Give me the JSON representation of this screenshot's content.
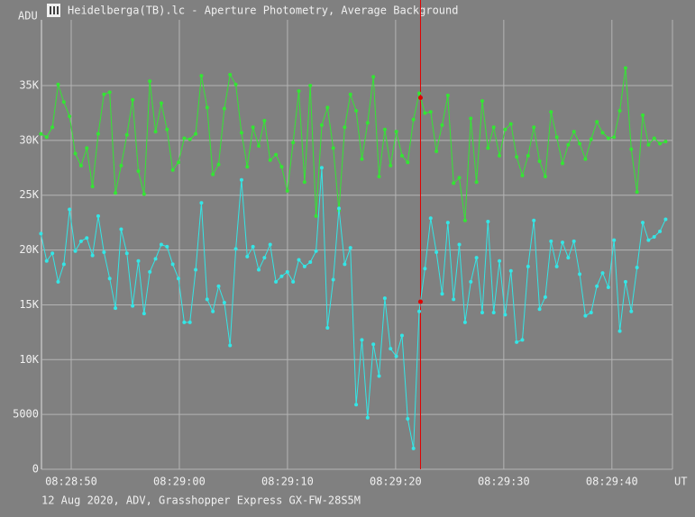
{
  "window_title": "Heidelberga(TB).lc - Aperture Photometry, Average Background",
  "footer": "12 Aug 2020, ADV, Grasshopper Express GX-FW-28S5M",
  "chart_data": {
    "type": "line",
    "ylabel": "ADU",
    "xlabel": "UT",
    "xlim": [
      30527.25,
      30585.6
    ],
    "ylim": [
      0,
      41000
    ],
    "grid": true,
    "cursor_x": 30562.3,
    "cursor_color": "#e00000",
    "xticks": [
      {
        "value": 30530,
        "label": "08:28:50"
      },
      {
        "value": 30540,
        "label": "08:29:00"
      },
      {
        "value": 30550,
        "label": "08:29:10"
      },
      {
        "value": 30560,
        "label": "08:29:20"
      },
      {
        "value": 30570,
        "label": "08:29:30"
      },
      {
        "value": 30580,
        "label": "08:29:40"
      }
    ],
    "yticks": [
      0,
      5000,
      {
        "value": 10000,
        "label": "10K"
      },
      {
        "value": 15000,
        "label": "15K"
      },
      {
        "value": 20000,
        "label": "20K"
      },
      {
        "value": 25000,
        "label": "25K"
      },
      {
        "value": 30000,
        "label": "30K"
      },
      {
        "value": 35000,
        "label": "35K"
      }
    ],
    "x": [
      30527.2,
      30527.73,
      30528.26,
      30528.79,
      30529.32,
      30529.85,
      30530.38,
      30530.91,
      30531.44,
      30531.97,
      30532.5,
      30533.03,
      30533.56,
      30534.09,
      30534.62,
      30535.15,
      30535.68,
      30536.21,
      30536.74,
      30537.27,
      30537.8,
      30538.33,
      30538.86,
      30539.39,
      30539.92,
      30540.45,
      30540.98,
      30541.51,
      30542.04,
      30542.57,
      30543.1,
      30543.63,
      30544.16,
      30544.69,
      30545.22,
      30545.75,
      30546.28,
      30546.81,
      30547.34,
      30547.87,
      30548.4,
      30548.93,
      30549.46,
      30549.99,
      30550.52,
      30551.05,
      30551.58,
      30552.11,
      30552.64,
      30553.17,
      30553.7,
      30554.23,
      30554.76,
      30555.29,
      30555.82,
      30556.35,
      30556.88,
      30557.41,
      30557.94,
      30558.47,
      30559.0,
      30559.53,
      30560.06,
      30560.59,
      30561.12,
      30561.65,
      30562.18,
      30562.71,
      30563.24,
      30563.77,
      30564.3,
      30564.83,
      30565.36,
      30565.89,
      30566.42,
      30566.95,
      30567.48,
      30568.01,
      30568.54,
      30569.07,
      30569.6,
      30570.13,
      30570.66,
      30571.19,
      30571.72,
      30572.25,
      30572.78,
      30573.31,
      30573.84,
      30574.37,
      30574.9,
      30575.43,
      30575.96,
      30576.49,
      30577.02,
      30577.55,
      30578.08,
      30578.61,
      30579.14,
      30579.67,
      30580.2,
      30580.73,
      30581.26,
      30581.79,
      30582.32,
      30582.85,
      30583.38,
      30583.91,
      30584.44,
      30584.97
    ],
    "series": [
      {
        "color": "#33e633",
        "values": [
          30600,
          30300,
          31200,
          35100,
          33500,
          32200,
          28800,
          27700,
          29300,
          25800,
          30600,
          34200,
          34400,
          25200,
          27700,
          30500,
          33700,
          27200,
          25100,
          35400,
          30800,
          33400,
          31000,
          27300,
          28000,
          30200,
          30100,
          30600,
          35900,
          33000,
          26900,
          27800,
          32900,
          36000,
          35100,
          30700,
          27600,
          31200,
          29500,
          31800,
          28200,
          28700,
          27600,
          25400,
          29800,
          34500,
          26200,
          35000,
          23100,
          31400,
          33000,
          29300,
          23600,
          31200,
          34200,
          32700,
          28300,
          31600,
          35800,
          26700,
          31000,
          27700,
          30800,
          28600,
          28000,
          31900,
          34300,
          32500,
          32600,
          29000,
          31400,
          34100,
          26100,
          26600,
          22700,
          32000,
          26200,
          33600,
          29300,
          31200,
          28600,
          31000,
          31500,
          28500,
          26800,
          28600,
          31200,
          28100,
          26700,
          32600,
          30300,
          27900,
          29600,
          30800,
          29700,
          28300,
          30100,
          31700,
          30700,
          30200,
          30300,
          32700,
          36600,
          29200,
          25300,
          32300,
          29600,
          30200,
          29700,
          29900
        ]
      },
      {
        "color": "#33e6e6",
        "values": [
          21500,
          19000,
          19700,
          17100,
          18700,
          23700,
          19900,
          20800,
          21100,
          19500,
          23100,
          19800,
          17400,
          14700,
          21900,
          19700,
          14900,
          19000,
          14200,
          18000,
          19200,
          20500,
          20300,
          18700,
          17400,
          13400,
          13400,
          18200,
          24300,
          15500,
          14400,
          16700,
          15200,
          11300,
          20100,
          26400,
          19400,
          20300,
          18200,
          19300,
          20500,
          17100,
          17600,
          18000,
          17100,
          19100,
          18500,
          18900,
          19900,
          27500,
          12900,
          17300,
          23800,
          18700,
          20200,
          5900,
          11800,
          4700,
          11400,
          8500,
          15600,
          11000,
          10300,
          12200,
          4600,
          1900,
          14400,
          18300,
          22900,
          19800,
          16000,
          22500,
          15500,
          20500,
          13400,
          17100,
          19300,
          14300,
          22600,
          14300,
          19000,
          14100,
          18100,
          11600,
          11800,
          18500,
          22700,
          14600,
          15700,
          20800,
          18500,
          20700,
          19300,
          20800,
          17800,
          14000,
          14300,
          16700,
          17900,
          16600,
          20900,
          12600,
          17100,
          14400,
          18400,
          22500,
          20900,
          21200,
          21700,
          22800
        ]
      }
    ]
  }
}
